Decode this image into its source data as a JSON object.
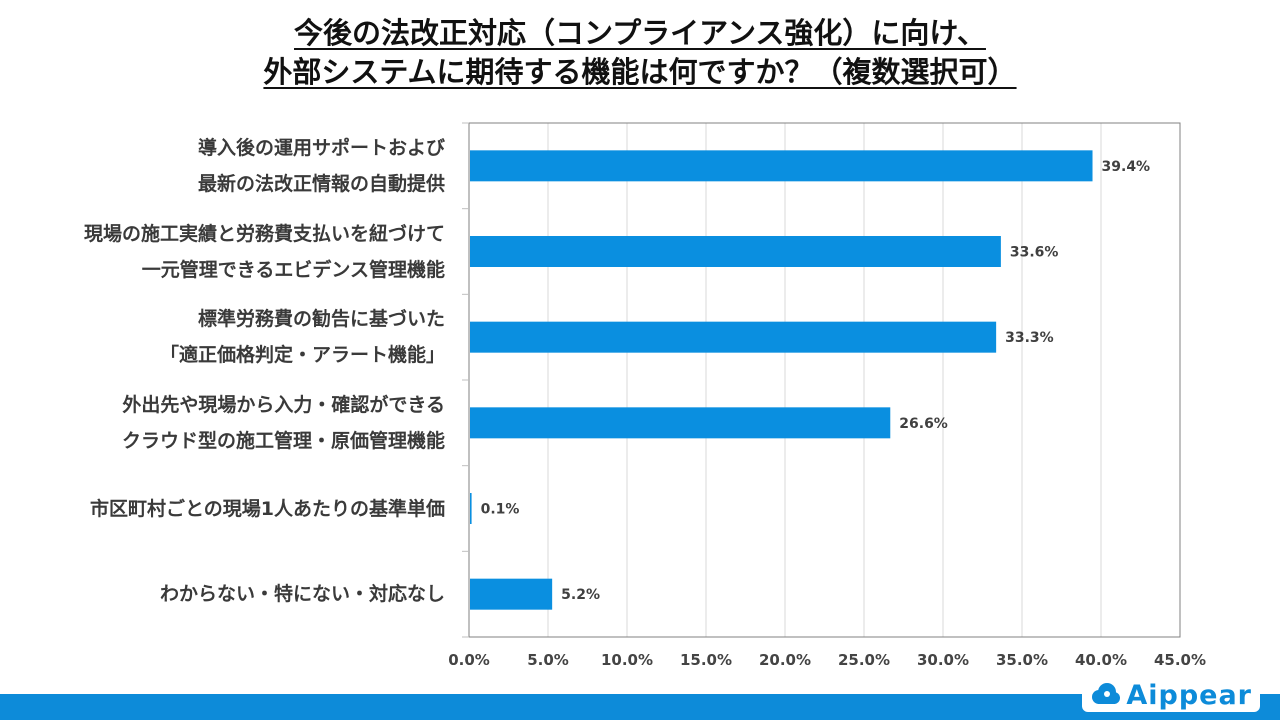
{
  "title_line1": "今後の法改正対応（コンプライアンス強化）に向け、",
  "title_line2": "外部システムに期待する機能は何ですか？（複数選択可）",
  "brand": "Aippear",
  "colors": {
    "bar": "#0a8fe0",
    "axis": "#555555",
    "grid": "#d9d9d9",
    "band": "#0d8bd9"
  },
  "chart_data": {
    "type": "bar",
    "orientation": "horizontal",
    "categories": [
      [
        "導入後の運用サポートおよび",
        "最新の法改正情報の自動提供"
      ],
      [
        "現場の施工実績と労務費支払いを紐づけて",
        "一元管理できるエビデンス管理機能"
      ],
      [
        "標準労務費の勧告に基づいた",
        "「適正価格判定・アラート機能」"
      ],
      [
        "外出先や現場から入力・確認ができる",
        "クラウド型の施工管理・原価管理機能"
      ],
      [
        "市区町村ごとの現場1人あたりの基準単価"
      ],
      [
        "わからない・特にない・対応なし"
      ]
    ],
    "values": [
      39.4,
      33.6,
      33.3,
      26.6,
      0.1,
      5.2
    ],
    "value_labels": [
      "39.4%",
      "33.6%",
      "33.3%",
      "26.6%",
      "0.1%",
      "5.2%"
    ],
    "xlim": [
      0,
      45
    ],
    "xticks": [
      0,
      5,
      10,
      15,
      20,
      25,
      30,
      35,
      40,
      45
    ],
    "xtick_labels": [
      "0.0%",
      "5.0%",
      "10.0%",
      "15.0%",
      "20.0%",
      "25.0%",
      "30.0%",
      "35.0%",
      "40.0%",
      "45.0%"
    ],
    "grid": true,
    "legend": "none"
  }
}
